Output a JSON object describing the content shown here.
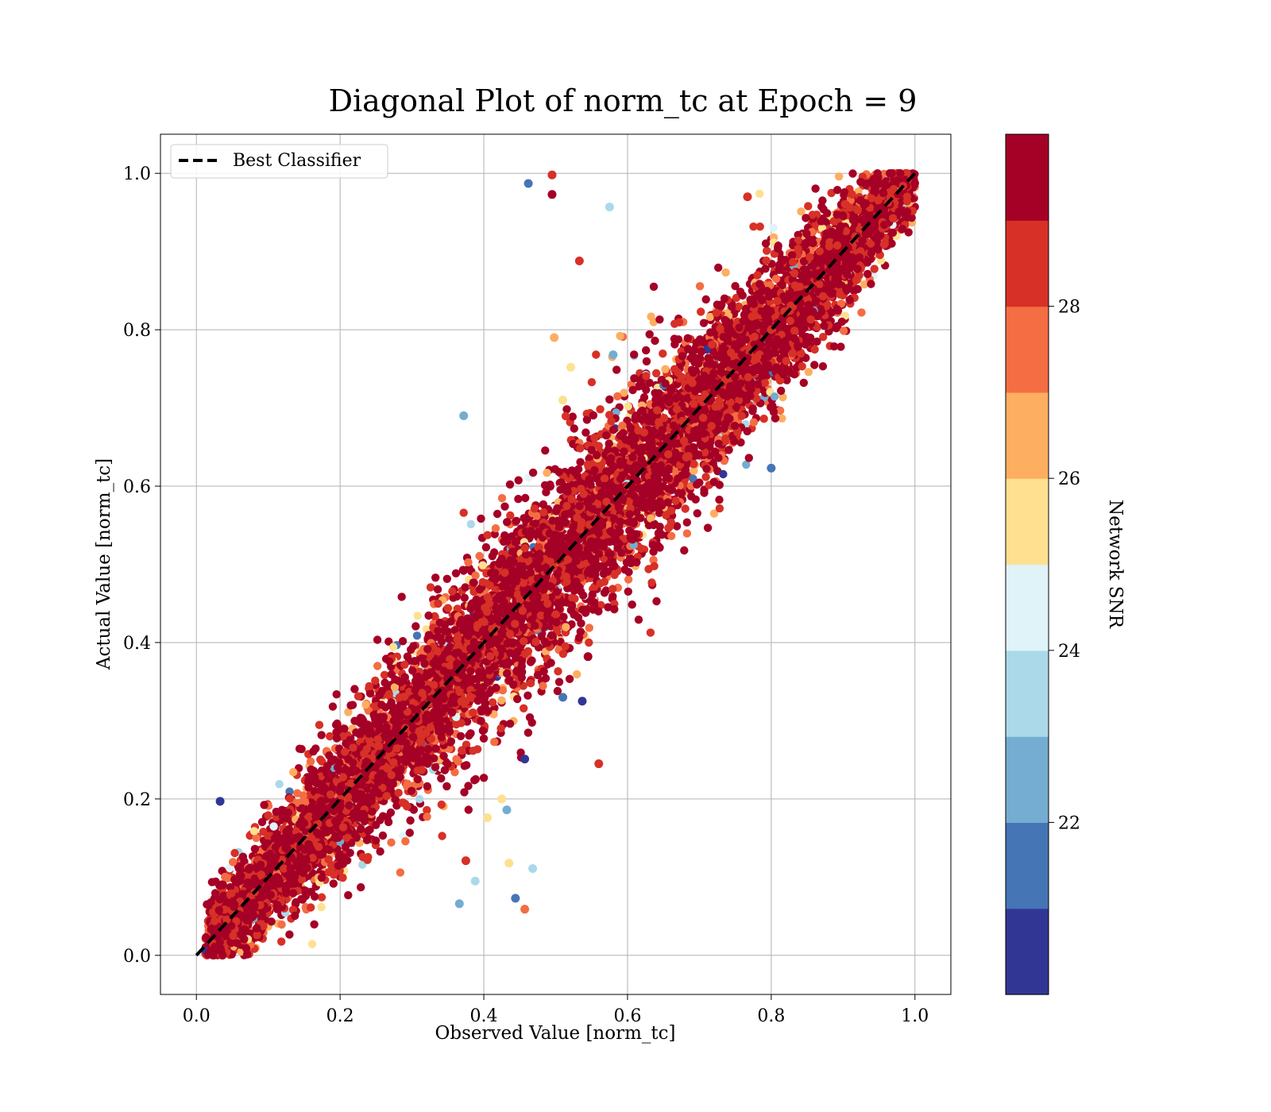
{
  "chart_data": {
    "type": "scatter",
    "title": "Diagonal Plot of norm_tc at Epoch = 9",
    "xlabel": "Observed Value [norm_tc]",
    "ylabel": "Actual Value [norm_tc]",
    "xlim": [
      -0.05,
      1.05
    ],
    "ylim": [
      -0.05,
      1.05
    ],
    "xticks": [
      0.0,
      0.2,
      0.4,
      0.6,
      0.8,
      1.0
    ],
    "yticks": [
      0.0,
      0.2,
      0.4,
      0.6,
      0.8,
      1.0
    ],
    "xtick_labels": [
      "0.0",
      "0.2",
      "0.4",
      "0.6",
      "0.8",
      "1.0"
    ],
    "ytick_labels": [
      "0.0",
      "0.2",
      "0.4",
      "0.6",
      "0.8",
      "1.0"
    ],
    "grid": true,
    "legend": {
      "placement": "top-left",
      "entries": [
        "Best Classifier"
      ]
    },
    "reference_line": {
      "name": "Best Classifier",
      "x": [
        0.0,
        1.0
      ],
      "y": [
        0.0,
        1.0
      ],
      "style": "dashed",
      "color": "#000000"
    },
    "colorbar": {
      "label": "Network SNR",
      "range": [
        20,
        30
      ],
      "ticks": [
        22,
        24,
        26,
        28
      ],
      "tick_labels": [
        "22",
        "24",
        "26",
        "28"
      ],
      "colors": [
        "#313695",
        "#4575b4",
        "#74add1",
        "#abd9e9",
        "#e0f3f8",
        "#fee090",
        "#fdae61",
        "#f46d43",
        "#d73027",
        "#a50026"
      ]
    },
    "outliers": [
      {
        "x": 0.462,
        "y": 0.987,
        "snr": 21.5
      },
      {
        "x": 0.495,
        "y": 0.998,
        "snr": 28.5
      },
      {
        "x": 0.495,
        "y": 0.973,
        "snr": 29.6
      },
      {
        "x": 0.575,
        "y": 0.957,
        "snr": 23.4
      },
      {
        "x": 0.533,
        "y": 0.888,
        "snr": 28.5
      },
      {
        "x": 0.498,
        "y": 0.79,
        "snr": 26.5
      },
      {
        "x": 0.372,
        "y": 0.69,
        "snr": 22.5
      },
      {
        "x": 0.521,
        "y": 0.752,
        "snr": 25.5
      },
      {
        "x": 0.51,
        "y": 0.71,
        "snr": 25.5
      },
      {
        "x": 0.56,
        "y": 0.245,
        "snr": 28.5
      },
      {
        "x": 0.457,
        "y": 0.251,
        "snr": 20.5
      },
      {
        "x": 0.425,
        "y": 0.2,
        "snr": 25.5
      },
      {
        "x": 0.432,
        "y": 0.186,
        "snr": 22.5
      },
      {
        "x": 0.405,
        "y": 0.176,
        "snr": 25.5
      },
      {
        "x": 0.375,
        "y": 0.121,
        "snr": 28.5
      },
      {
        "x": 0.435,
        "y": 0.118,
        "snr": 25.5
      },
      {
        "x": 0.468,
        "y": 0.111,
        "snr": 23.5
      },
      {
        "x": 0.388,
        "y": 0.095,
        "snr": 23.5
      },
      {
        "x": 0.366,
        "y": 0.066,
        "snr": 22.5
      },
      {
        "x": 0.444,
        "y": 0.073,
        "snr": 21.5
      },
      {
        "x": 0.457,
        "y": 0.059,
        "snr": 27.5
      },
      {
        "x": 0.537,
        "y": 0.325,
        "snr": 20.5
      },
      {
        "x": 0.51,
        "y": 0.33,
        "snr": 21.5
      },
      {
        "x": 0.545,
        "y": 0.382,
        "snr": 29.6
      },
      {
        "x": 0.033,
        "y": 0.197,
        "snr": 20.5
      },
      {
        "x": 0.767,
        "y": 0.97,
        "snr": 28.5
      },
      {
        "x": 0.8,
        "y": 0.623,
        "snr": 21.5
      },
      {
        "x": 0.58,
        "y": 0.768,
        "snr": 22.5
      }
    ],
    "band": {
      "description": "dense scatter band around y = x",
      "x_range": [
        0.0,
        1.0
      ],
      "y_range": [
        0.0,
        1.0
      ],
      "dominant_snr": 29.5
    }
  }
}
